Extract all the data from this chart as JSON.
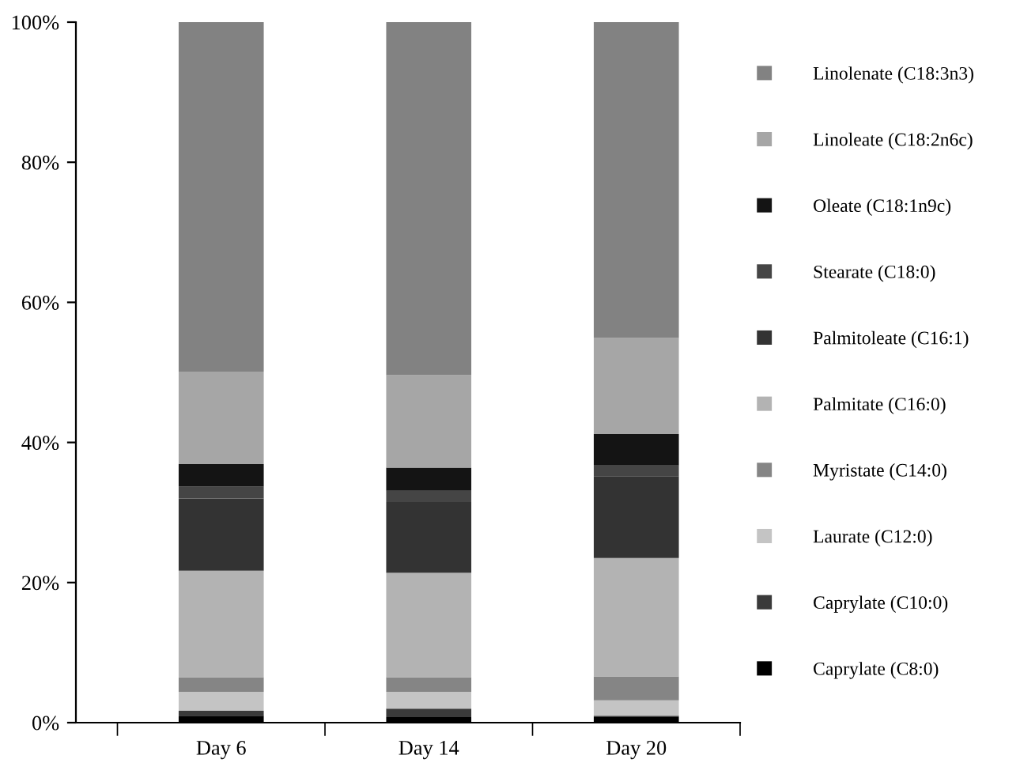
{
  "chart_data": {
    "type": "bar",
    "stacked": true,
    "categories": [
      "Day 6",
      "Day 14",
      "Day 20"
    ],
    "series": [
      {
        "name": "Caprylate (C8:0)",
        "color": "#000000",
        "values": [
          1.0,
          0.8,
          0.8
        ]
      },
      {
        "name": "Caprylate (C10:0)",
        "color": "#3a3a3a",
        "values": [
          0.7,
          1.2,
          0.2
        ]
      },
      {
        "name": "Laurate (C12:0)",
        "color": "#c4c4c4",
        "values": [
          2.7,
          2.4,
          2.2
        ]
      },
      {
        "name": "Myristate (C14:0)",
        "color": "#858585",
        "values": [
          2.1,
          2.1,
          3.4
        ]
      },
      {
        "name": "Palmitate (C16:0)",
        "color": "#b3b3b3",
        "values": [
          15.2,
          14.9,
          16.9
        ]
      },
      {
        "name": "Palmitoleate (C16:1)",
        "color": "#333333",
        "values": [
          10.3,
          10.1,
          11.7
        ]
      },
      {
        "name": "Stearate (C18:0)",
        "color": "#454545",
        "values": [
          1.7,
          1.6,
          1.5
        ]
      },
      {
        "name": "Oleate (C18:1n9c)",
        "color": "#141414",
        "values": [
          3.2,
          3.3,
          4.5
        ]
      },
      {
        "name": "Linoleate (C18:2n6c)",
        "color": "#a6a6a6",
        "values": [
          13.2,
          13.2,
          13.7
        ]
      },
      {
        "name": "Linolenate (C18:3n3)",
        "color": "#828282",
        "values": [
          49.9,
          50.4,
          45.1
        ]
      }
    ],
    "ylim": [
      0,
      100
    ],
    "yticks": [
      {
        "value": 0,
        "label": "0%"
      },
      {
        "value": 20,
        "label": "20%"
      },
      {
        "value": 40,
        "label": "40%"
      },
      {
        "value": 60,
        "label": "60%"
      },
      {
        "value": 80,
        "label": "80%"
      },
      {
        "value": 100,
        "label": "100%"
      }
    ],
    "legend": "right",
    "grid": false
  }
}
